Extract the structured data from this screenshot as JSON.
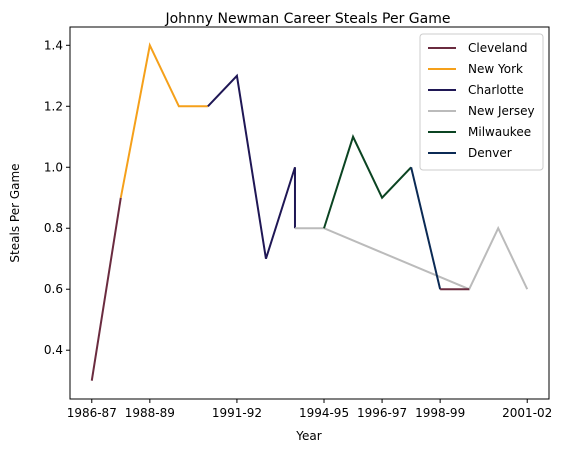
{
  "chart_data": {
    "type": "line",
    "title": "Johnny Newman Career Steals Per Game",
    "xlabel": "Year",
    "ylabel": "Steals Per Game",
    "x_tick_labels": [
      "1986-87",
      "1988-89",
      "1991-92",
      "1994-95",
      "1996-97",
      "1998-99",
      "2001-02"
    ],
    "y_tick_labels": [
      "0.4",
      "0.6",
      "0.8",
      "1.0",
      "1.2",
      "1.4"
    ],
    "y_ticks": [
      0.4,
      0.6,
      0.8,
      1.0,
      1.2,
      1.4
    ],
    "ylim": [
      0.24,
      1.46
    ],
    "seasons": [
      "1986-87",
      "1987-88",
      "1988-89",
      "1989-90",
      "1990-91",
      "1991-92",
      "1992-93",
      "1993-94",
      "1993-94",
      "1994-95",
      "1995-96",
      "1996-97",
      "1997-98",
      "1998-99",
      "1999-00",
      "2000-01",
      "2001-02"
    ],
    "legend_position": "upper right",
    "grid": false,
    "series": [
      {
        "name": "Cleveland",
        "color": "#6a2b3f",
        "points": [
          [
            "1986-87",
            0.3
          ],
          [
            "1987-88",
            0.9
          ]
        ]
      },
      {
        "name": "New York",
        "color": "#f5a01a",
        "points": [
          [
            "1987-88",
            0.9
          ],
          [
            "1988-89",
            1.4
          ],
          [
            "1989-90",
            1.2
          ],
          [
            "1990-91",
            1.2
          ]
        ]
      },
      {
        "name": "Charlotte",
        "color": "#1f1755",
        "points": [
          [
            "1990-91",
            1.2
          ],
          [
            "1991-92",
            1.3
          ],
          [
            "1992-93",
            0.7
          ],
          [
            "1993-94",
            1.0
          ],
          [
            "1993-94",
            0.8
          ]
        ]
      },
      {
        "name": "New Jersey",
        "color": "#bbbbbb",
        "points": [
          [
            "1993-94",
            0.8
          ],
          [
            "1994-95",
            0.8
          ],
          [
            "1999-00",
            0.6
          ],
          [
            "2000-01",
            0.8
          ],
          [
            "2001-02",
            0.6
          ]
        ]
      },
      {
        "name": "Milwaukee",
        "color": "#0b4422",
        "points": [
          [
            "1994-95",
            0.8
          ],
          [
            "1995-96",
            1.1
          ],
          [
            "1996-97",
            0.9
          ],
          [
            "1997-98",
            1.0
          ]
        ]
      },
      {
        "name": "Denver",
        "color": "#0b2a55",
        "points": [
          [
            "1997-98",
            1.0
          ],
          [
            "1998-99",
            0.6
          ]
        ]
      },
      {
        "name": "Cleveland",
        "color": "#6a2b3f",
        "points": [
          [
            "1998-99",
            0.6
          ],
          [
            "1999-00",
            0.6
          ]
        ],
        "legend": false
      }
    ]
  }
}
